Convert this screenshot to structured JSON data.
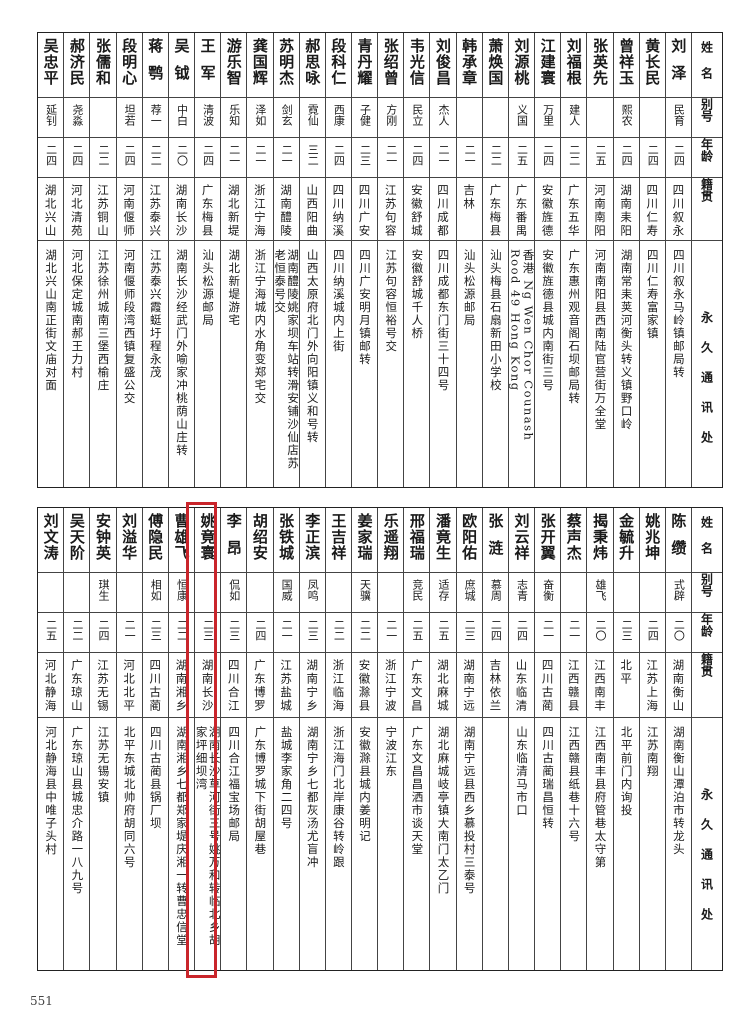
{
  "headers": {
    "name": "姓名",
    "alias": "别号",
    "age": "年龄",
    "hometown": "籍贯",
    "address": "永久通讯处"
  },
  "top": [
    {
      "name": "刘泽",
      "alias": "民育",
      "age": "二四",
      "hometown": "四川叙永",
      "address": "四川叙永马岭镇邮局转"
    },
    {
      "name": "黄长民",
      "alias": "",
      "age": "二四",
      "hometown": "四川仁寿",
      "address": "四川仁寿富家镇"
    },
    {
      "name": "曾祥玉",
      "alias": "熙农",
      "age": "二四",
      "hometown": "湖南耒阳",
      "address": "湖南常耒荚河衡头转义镇野口岭"
    },
    {
      "name": "张英先",
      "alias": "",
      "age": "二五",
      "hometown": "河南南阳",
      "address": "河南南阳县西南陆官营街万全堂"
    },
    {
      "name": "刘福根",
      "alias": "建人",
      "age": "二二",
      "hometown": "广东五华",
      "address": "广东惠州观音阁石坝邮局转"
    },
    {
      "name": "江建寰",
      "alias": "万里",
      "age": "二四",
      "hometown": "安徽旌德",
      "address": "安徽旌德县城内南街三号"
    },
    {
      "name": "刘源桃",
      "alias": "义国",
      "age": "二五",
      "hometown": "广东番禺",
      "address": "香港 Ng Wen Chor Counash Rood 49 Hong Kong"
    },
    {
      "name": "萧焕国",
      "alias": "",
      "age": "二二",
      "hometown": "广东梅县",
      "address": "汕头梅县石扇新田小学校"
    },
    {
      "name": "韩承章",
      "alias": "",
      "age": "二一",
      "hometown": "吉林",
      "address": "汕头松源邮局"
    },
    {
      "name": "刘俊昌",
      "alias": "杰人",
      "age": "二一",
      "hometown": "四川成都",
      "address": "四川成都东门街三十四号"
    },
    {
      "name": "韦光信",
      "alias": "民立",
      "age": "二四",
      "hometown": "安徽舒城",
      "address": "安徽舒城千人桥"
    },
    {
      "name": "张绍曾",
      "alias": "方刚",
      "age": "二一",
      "hometown": "江苏句容",
      "address": "江苏句容恒裕号交"
    },
    {
      "name": "青丹耀",
      "alias": "子健",
      "age": "二三",
      "hometown": "四川广安",
      "address": "四川广安明月镇邮转"
    },
    {
      "name": "段科仁",
      "alias": "西康",
      "age": "二四",
      "hometown": "四川纳溪",
      "address": "四川纳溪城内上街"
    },
    {
      "name": "郝思咏",
      "alias": "霓仙",
      "age": "三二",
      "hometown": "山西阳曲",
      "address": "山西太原府北门外向阳镇义和号转"
    },
    {
      "name": "苏明杰",
      "alias": "剑玄",
      "age": "二一",
      "hometown": "湖南醴陵",
      "address": "湖南醴陵姚家坝车站转滑安铺沙仙店苏老恒泰号交"
    },
    {
      "name": "龚国辉",
      "alias": "泽如",
      "age": "二一",
      "hometown": "浙江宁海",
      "address": "浙江宁海城内水角变郑宅交"
    },
    {
      "name": "游乐智",
      "alias": "乐知",
      "age": "二一",
      "hometown": "湖北新堤",
      "address": "湖北新堤游宅"
    },
    {
      "name": "王军",
      "alias": "清波",
      "age": "二四",
      "hometown": "广东梅县",
      "address": "汕头松源邮局"
    },
    {
      "name": "吴钺",
      "alias": "中白",
      "age": "二〇",
      "hometown": "湖南长沙",
      "address": "湖南长沙经武门外喻家冲桃荫山庄转"
    },
    {
      "name": "蒋鹗",
      "alias": "荐一",
      "age": "二二",
      "hometown": "江苏泰兴",
      "address": "江苏泰兴霞蜓圩程永茂"
    },
    {
      "name": "段明心",
      "alias": "坦若",
      "age": "二四",
      "hometown": "河南偃师",
      "address": "河南偃师段湾西镇复盛公交"
    },
    {
      "name": "张儒和",
      "alias": "",
      "age": "二二",
      "hometown": "江苏铜山",
      "address": "江苏徐州城南三堡西榆庄"
    },
    {
      "name": "郝济民",
      "alias": "尧淼",
      "age": "二四",
      "hometown": "河北清苑",
      "address": "河北保定城南郝王力村"
    },
    {
      "name": "吴忠平",
      "alias": "延钊",
      "age": "二四",
      "hometown": "湖北兴山",
      "address": "湖北兴山南正街文庙对面"
    }
  ],
  "bottom": [
    {
      "name": "陈缵",
      "alias": "式辟",
      "age": "二〇",
      "hometown": "湖南衡山",
      "address": "湖南衡山潭泊市转龙头"
    },
    {
      "name": "姚兆坤",
      "alias": "",
      "age": "二四",
      "hometown": "江苏上海",
      "address": "江苏南翔"
    },
    {
      "name": "金毓升",
      "alias": "",
      "age": "二三",
      "hometown": "北平",
      "address": "北平前门内询投"
    },
    {
      "name": "揭秉炜",
      "alias": "雄飞",
      "age": "二〇",
      "hometown": "江西南丰",
      "address": "江西南丰县府管巷太守第"
    },
    {
      "name": "蔡声杰",
      "alias": "",
      "age": "二一",
      "hometown": "江西赣县",
      "address": "江西赣县纸巷十六号"
    },
    {
      "name": "张开翼",
      "alias": "奋衡",
      "age": "二一",
      "hometown": "四川古蔺",
      "address": "四川古蔺瑞昌恒转"
    },
    {
      "name": "刘云祥",
      "alias": "志青",
      "age": "二四",
      "hometown": "山东临清",
      "address": "山东临清马市口"
    },
    {
      "name": "张涟",
      "alias": "慕周",
      "age": "二四",
      "hometown": "吉林依兰",
      "address": ""
    },
    {
      "name": "欧阳佑",
      "alias": "庶城",
      "age": "二三",
      "hometown": "湖南宁远",
      "address": "湖南宁远县西乡慕投村三泰号"
    },
    {
      "name": "潘竟生",
      "alias": "适存",
      "age": "二五",
      "hometown": "湖北麻城",
      "address": "湖北麻城岐亭镇大南门太乙门"
    },
    {
      "name": "邢福瑞",
      "alias": "竞民",
      "age": "二五",
      "hometown": "广东文昌",
      "address": "广东文昌昌洒市谈天堂"
    },
    {
      "name": "乐遥翔",
      "alias": "",
      "age": "二一",
      "hometown": "浙江宁波",
      "address": "宁波江东"
    },
    {
      "name": "姜家瑞",
      "alias": "天骥",
      "age": "二二",
      "hometown": "安徽滁县",
      "address": "安徽滁县城内姜明记"
    },
    {
      "name": "王吉祥",
      "alias": "",
      "age": "二二",
      "hometown": "浙江临海",
      "address": "浙江海门北岸康谷转岭跟"
    },
    {
      "name": "李正滨",
      "alias": "凤鸣",
      "age": "二三",
      "hometown": "湖南宁乡",
      "address": "湖南宁乡七都灰汤尤盲冲"
    },
    {
      "name": "张铁城",
      "alias": "国威",
      "age": "二一",
      "hometown": "江苏盐城",
      "address": "盐城李家角二四号"
    },
    {
      "name": "胡绍安",
      "alias": "",
      "age": "二四",
      "hometown": "广东博罗",
      "address": "广东博罗城下街胡屋巷"
    },
    {
      "name": "李昂",
      "alias": "侃如",
      "age": "二三",
      "hometown": "四川合江",
      "address": "四川合江福宝场邮局"
    },
    {
      "name": "姚竟寰",
      "alias": "",
      "age": "二三",
      "hometown": "湖南长沙",
      "address": "湖南长沙草河街三号姚万和转临北乡胡家坪细坝湾"
    },
    {
      "name": "曹雄飞",
      "alias": "恒康",
      "age": "二二",
      "hometown": "湖南湘乡",
      "address": "湖南湘乡七都郑家堤庆湘一转曹忠信堂"
    },
    {
      "name": "傅隐民",
      "alias": "相如",
      "age": "二三",
      "hometown": "四川古蔺",
      "address": "四川古蔺县锅厂坝"
    },
    {
      "name": "刘溢华",
      "alias": "",
      "age": "二一",
      "hometown": "河北北平",
      "address": "北平东城北帅府胡同六号"
    },
    {
      "name": "安钟英",
      "alias": "琪生",
      "age": "二四",
      "hometown": "江苏无锡",
      "address": "江苏无锡安镇"
    },
    {
      "name": "吴天阶",
      "alias": "",
      "age": "二二",
      "hometown": "广东琼山",
      "address": "广东琼山县城忠介路一八九号"
    },
    {
      "name": "刘文涛",
      "alias": "",
      "age": "二五",
      "hometown": "河北静海",
      "address": "河北静海县中唯子头村"
    }
  ],
  "highlight": {
    "row": "姚竟寰",
    "color": "#c9252b"
  },
  "page_number": "551"
}
